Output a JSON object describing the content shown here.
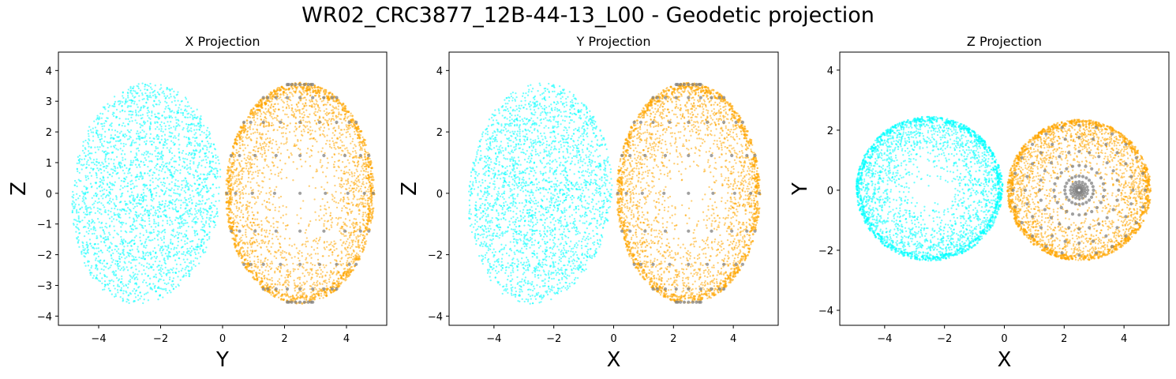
{
  "figure": {
    "title": "WR02_CRC3877_12B-44-13_L00 - Geodetic projection"
  },
  "colors": {
    "cyan_cloud": "#00ffff",
    "orange_cloud": "#ffa500",
    "grid_points": "#808080"
  },
  "chart_data": [
    {
      "type": "scatter",
      "title": "X Projection",
      "xlabel": "Y",
      "ylabel": "Z",
      "xlim": [
        -5.3,
        5.3
      ],
      "ylim": [
        -4.3,
        4.6
      ],
      "xticks": [
        -4,
        -2,
        0,
        2,
        4
      ],
      "xtick_labels": [
        "−4",
        "−2",
        "0",
        "2",
        "4"
      ],
      "yticks": [
        -4,
        -3,
        -2,
        -1,
        0,
        1,
        2,
        3,
        4
      ],
      "ytick_labels": [
        "−4",
        "−3",
        "−2",
        "−1",
        "0",
        "1",
        "2",
        "3",
        "4"
      ],
      "series": [
        {
          "color": "#00ffff",
          "shape": "blob",
          "center": [
            -2.45,
            0
          ],
          "half_width": 2.4,
          "half_height": 3.6,
          "count": 2600
        },
        {
          "color": "#ffa500",
          "shape": "ellipse",
          "center": [
            2.5,
            0
          ],
          "half_width": 2.4,
          "half_height": 3.6,
          "count": 2400
        },
        {
          "color": "#808080",
          "shape": "meridians",
          "center": [
            2.5,
            0
          ],
          "half_width": 2.4,
          "half_height": 3.6
        }
      ]
    },
    {
      "type": "scatter",
      "title": "Y Projection",
      "xlabel": "X",
      "ylabel": "Z",
      "xlim": [
        -5.5,
        5.5
      ],
      "ylim": [
        -4.3,
        4.6
      ],
      "xticks": [
        -4,
        -2,
        0,
        2,
        4
      ],
      "xtick_labels": [
        "−4",
        "−2",
        "0",
        "2",
        "4"
      ],
      "yticks": [
        -4,
        -2,
        0,
        2,
        4
      ],
      "ytick_labels": [
        "−4",
        "−2",
        "0",
        "2",
        "4"
      ],
      "series": [
        {
          "color": "#00ffff",
          "shape": "blob",
          "center": [
            -2.45,
            0
          ],
          "half_width": 2.4,
          "half_height": 3.6,
          "count": 2600
        },
        {
          "color": "#ffa500",
          "shape": "ellipse",
          "center": [
            2.5,
            0
          ],
          "half_width": 2.4,
          "half_height": 3.6,
          "count": 2400
        },
        {
          "color": "#808080",
          "shape": "meridians",
          "center": [
            2.5,
            0
          ],
          "half_width": 2.4,
          "half_height": 3.6
        }
      ]
    },
    {
      "type": "scatter",
      "title": "Z Projection",
      "xlabel": "X",
      "ylabel": "Y",
      "xlim": [
        -5.5,
        5.5
      ],
      "ylim": [
        -4.5,
        4.6
      ],
      "xticks": [
        -4,
        -2,
        0,
        2,
        4
      ],
      "xtick_labels": [
        "−4",
        "−2",
        "0",
        "2",
        "4"
      ],
      "yticks": [
        -4,
        -2,
        0,
        2,
        4
      ],
      "ytick_labels": [
        "−4",
        "−2",
        "0",
        "2",
        "4"
      ],
      "series": [
        {
          "color": "#00ffff",
          "shape": "disk",
          "center": [
            -2.5,
            0.05
          ],
          "half_width": 2.45,
          "half_height": 2.4,
          "count": 2200
        },
        {
          "color": "#ffa500",
          "shape": "disk",
          "center": [
            2.5,
            0
          ],
          "half_width": 2.4,
          "half_height": 2.35,
          "count": 2200
        },
        {
          "color": "#808080",
          "shape": "polar",
          "center": [
            2.5,
            0
          ],
          "half_width": 2.4,
          "half_height": 2.35
        }
      ]
    }
  ]
}
